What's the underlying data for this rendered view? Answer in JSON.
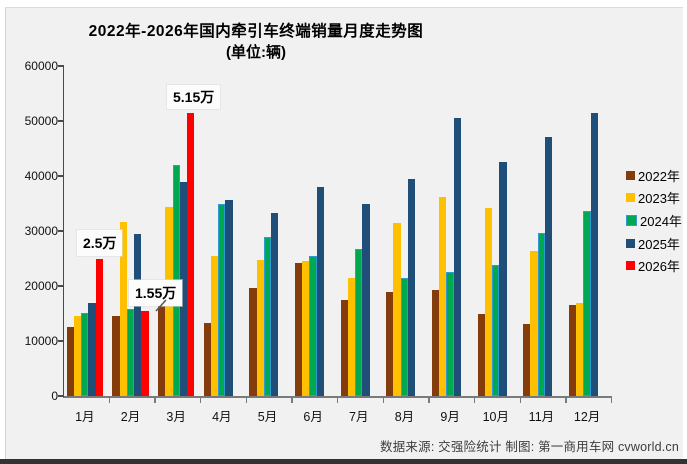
{
  "footer": {
    "source_note": "数据来源: 交强险统计  制图: 第一商用车网 cvworld.cn"
  },
  "chart_data": {
    "type": "bar",
    "title": "2022年-2026年国内牵引车终端销量月度走势图",
    "subtitle": "(单位:辆)",
    "categories": [
      "1月",
      "2月",
      "3月",
      "4月",
      "5月",
      "6月",
      "7月",
      "8月",
      "9月",
      "10月",
      "11月",
      "12月"
    ],
    "ylim": [
      0,
      60000
    ],
    "yticks": [
      0,
      10000,
      20000,
      30000,
      40000,
      50000,
      60000
    ],
    "grid": false,
    "legend_position": "right",
    "series": [
      {
        "name": "2022年",
        "color": "#843C0C",
        "values": [
          12500,
          14500,
          17600,
          13200,
          19600,
          24200,
          17400,
          18900,
          19300,
          15000,
          13100,
          16600
        ]
      },
      {
        "name": "2023年",
        "color": "#FFC000",
        "values": [
          14500,
          31700,
          34300,
          25400,
          24800,
          24500,
          21500,
          31500,
          36200,
          34100,
          26300,
          17000
        ]
      },
      {
        "name": "2024年",
        "color": "#00A84F",
        "border_color": "#2E9BD5",
        "values": [
          15100,
          15800,
          42000,
          34900,
          29000,
          25500,
          26700,
          21500,
          22500,
          23800,
          29700,
          33600
        ]
      },
      {
        "name": "2025年",
        "color": "#1F4E79",
        "values": [
          16900,
          29400,
          39000,
          35700,
          33300,
          38000,
          35000,
          39500,
          50500,
          42600,
          47100,
          51500
        ]
      },
      {
        "name": "2026年",
        "color": "#FF0000",
        "values": [
          25000,
          15500,
          51500,
          null,
          null,
          null,
          null,
          null,
          null,
          null,
          null,
          null
        ]
      }
    ],
    "annotations": [
      {
        "text": "2.5万",
        "month": "1月",
        "series": "2026年",
        "value": 25000
      },
      {
        "text": "1.55万",
        "month": "2月",
        "series": "2026年",
        "value": 15500
      },
      {
        "text": "5.15万",
        "month": "3月",
        "series": "2026年",
        "value": 51500
      }
    ]
  }
}
